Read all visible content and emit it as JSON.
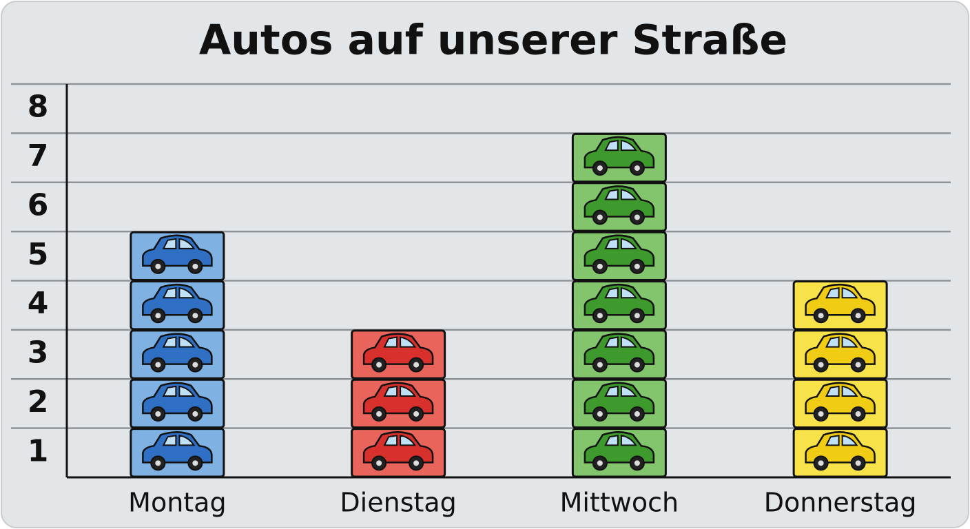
{
  "chart_data": {
    "type": "pictograph",
    "title": "Autos auf unserer Straße",
    "categories": [
      "Montag",
      "Dienstag",
      "Mittwoch",
      "Donnerstag"
    ],
    "values": [
      5,
      3,
      7,
      4
    ],
    "colors": [
      "#2f6fc4",
      "#d8302c",
      "#3f9a2e",
      "#f0cc14"
    ],
    "box_colors": [
      "#7fb2e3",
      "#e9655c",
      "#83c56c",
      "#f7e24a"
    ],
    "ylim": [
      0,
      8
    ],
    "yticks": [
      1,
      2,
      3,
      4,
      5,
      6,
      7,
      8
    ],
    "grid": true
  }
}
